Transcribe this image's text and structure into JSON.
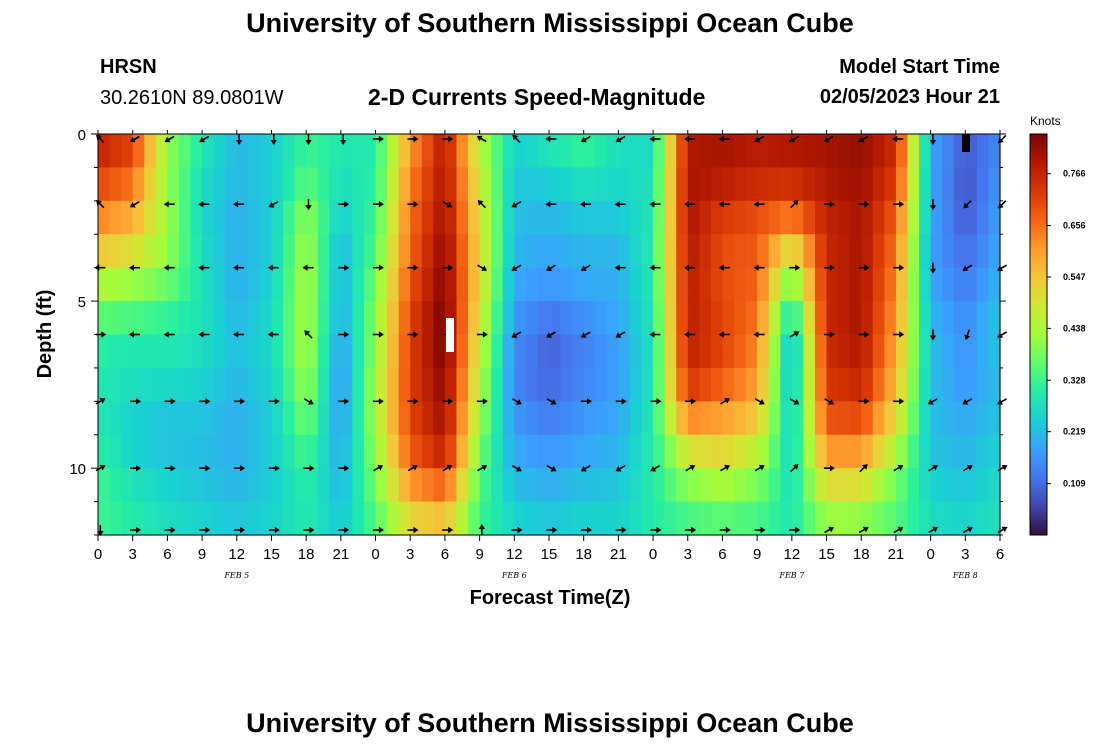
{
  "header": {
    "title": "University of Southern Mississippi Ocean Cube",
    "station": "HRSN",
    "coordinates": "30.2610N  89.0801W",
    "plot_title": "2-D Currents Speed-Magnitude",
    "model_label": "Model Start Time",
    "model_time": "02/05/2023 Hour 21"
  },
  "footer": {
    "title": "University of Southern Mississippi Ocean Cube"
  },
  "chart_data": {
    "type": "heatmap",
    "title": "2-D Currents Speed-Magnitude",
    "xlabel": "Forecast Time(Z)",
    "ylabel": "Depth (ft)",
    "x_tick_labels": [
      "0",
      "3",
      "6",
      "9",
      "12",
      "15",
      "18",
      "21",
      "0",
      "3",
      "6",
      "9",
      "12",
      "15",
      "18",
      "21",
      "0",
      "3",
      "6",
      "9",
      "12",
      "15",
      "18",
      "21",
      "0",
      "3",
      "6"
    ],
    "x_range_hours": [
      0,
      78
    ],
    "y_tick_labels": [
      "0",
      "5",
      "10"
    ],
    "y_ticks": [
      0,
      5,
      10
    ],
    "ylim": [
      0,
      12
    ],
    "day_labels": [
      {
        "label": "FEB 5",
        "hour": 12
      },
      {
        "label": "FEB 6",
        "hour": 36
      },
      {
        "label": "FEB 7",
        "hour": 60
      },
      {
        "label": "FEB 8",
        "hour": 75
      }
    ],
    "colorbar": {
      "units": "Knots",
      "tick_labels": [
        "0.766",
        "0.656",
        "0.547",
        "0.438",
        "0.328",
        "0.219",
        "0.109"
      ],
      "ticks": [
        0.766,
        0.656,
        0.547,
        0.438,
        0.328,
        0.219,
        0.109
      ],
      "range": [
        0,
        0.85
      ],
      "colors": [
        "#30123b",
        "#4145ab",
        "#4675ed",
        "#39a2fc",
        "#1bcfd4",
        "#24eca6",
        "#61fc6c",
        "#a4fc3b",
        "#d1e834",
        "#f3c63a",
        "#fe9b2d",
        "#f36315",
        "#d93806",
        "#b11901",
        "#7a0403"
      ]
    },
    "time_hours": [
      0,
      3,
      6,
      9,
      12,
      15,
      18,
      21,
      24,
      27,
      30,
      33,
      36,
      39,
      42,
      45,
      48,
      51,
      54,
      57,
      60,
      63,
      66,
      69,
      72,
      75,
      78
    ],
    "depth_ft": [
      0,
      1,
      2,
      3,
      4,
      5,
      6,
      7,
      8,
      9,
      10,
      11,
      12
    ],
    "speed_knots": [
      [
        0.78,
        0.72,
        0.42,
        0.3,
        0.2,
        0.24,
        0.34,
        0.3,
        0.3,
        0.6,
        0.78,
        0.45,
        0.25,
        0.3,
        0.34,
        0.28,
        0.25,
        0.78,
        0.8,
        0.78,
        0.8,
        0.8,
        0.82,
        0.76,
        0.2,
        0.1,
        0.15
      ],
      [
        0.75,
        0.7,
        0.4,
        0.28,
        0.22,
        0.24,
        0.32,
        0.28,
        0.3,
        0.62,
        0.8,
        0.46,
        0.24,
        0.26,
        0.3,
        0.26,
        0.28,
        0.8,
        0.8,
        0.78,
        0.78,
        0.8,
        0.82,
        0.74,
        0.18,
        0.08,
        0.15
      ],
      [
        0.66,
        0.6,
        0.42,
        0.26,
        0.2,
        0.24,
        0.4,
        0.26,
        0.32,
        0.65,
        0.8,
        0.5,
        0.22,
        0.22,
        0.25,
        0.25,
        0.28,
        0.8,
        0.75,
        0.72,
        0.7,
        0.78,
        0.8,
        0.7,
        0.2,
        0.08,
        0.18
      ],
      [
        0.6,
        0.56,
        0.42,
        0.26,
        0.2,
        0.24,
        0.42,
        0.22,
        0.34,
        0.66,
        0.82,
        0.5,
        0.22,
        0.2,
        0.22,
        0.22,
        0.3,
        0.8,
        0.7,
        0.68,
        0.58,
        0.76,
        0.8,
        0.66,
        0.18,
        0.1,
        0.18
      ],
      [
        0.48,
        0.45,
        0.4,
        0.28,
        0.2,
        0.24,
        0.44,
        0.2,
        0.36,
        0.68,
        0.84,
        0.52,
        0.2,
        0.18,
        0.2,
        0.2,
        0.3,
        0.78,
        0.7,
        0.68,
        0.4,
        0.76,
        0.8,
        0.64,
        0.18,
        0.12,
        0.2
      ],
      [
        0.4,
        0.38,
        0.34,
        0.28,
        0.2,
        0.26,
        0.44,
        0.2,
        0.4,
        0.7,
        0.85,
        0.5,
        0.18,
        0.15,
        0.18,
        0.2,
        0.3,
        0.78,
        0.7,
        0.66,
        0.32,
        0.76,
        0.8,
        0.62,
        0.2,
        0.14,
        0.22
      ],
      [
        0.32,
        0.3,
        0.3,
        0.28,
        0.22,
        0.26,
        0.44,
        0.18,
        0.4,
        0.72,
        0.86,
        0.48,
        0.16,
        0.1,
        0.14,
        0.18,
        0.28,
        0.78,
        0.72,
        0.64,
        0.2,
        0.76,
        0.8,
        0.6,
        0.22,
        0.16,
        0.24
      ],
      [
        0.3,
        0.28,
        0.28,
        0.26,
        0.22,
        0.26,
        0.44,
        0.16,
        0.42,
        0.72,
        0.84,
        0.46,
        0.14,
        0.1,
        0.14,
        0.18,
        0.28,
        0.76,
        0.7,
        0.62,
        0.2,
        0.74,
        0.78,
        0.58,
        0.22,
        0.16,
        0.22
      ],
      [
        0.28,
        0.26,
        0.24,
        0.24,
        0.2,
        0.24,
        0.4,
        0.16,
        0.44,
        0.72,
        0.82,
        0.44,
        0.15,
        0.12,
        0.15,
        0.18,
        0.3,
        0.7,
        0.64,
        0.58,
        0.22,
        0.72,
        0.74,
        0.54,
        0.22,
        0.18,
        0.22
      ],
      [
        0.3,
        0.24,
        0.22,
        0.22,
        0.2,
        0.24,
        0.36,
        0.18,
        0.42,
        0.7,
        0.8,
        0.4,
        0.18,
        0.15,
        0.18,
        0.2,
        0.3,
        0.55,
        0.56,
        0.5,
        0.24,
        0.66,
        0.66,
        0.48,
        0.22,
        0.2,
        0.24
      ],
      [
        0.32,
        0.26,
        0.24,
        0.22,
        0.2,
        0.24,
        0.32,
        0.2,
        0.4,
        0.66,
        0.74,
        0.36,
        0.2,
        0.18,
        0.2,
        0.22,
        0.3,
        0.44,
        0.48,
        0.42,
        0.26,
        0.56,
        0.56,
        0.4,
        0.24,
        0.22,
        0.26
      ],
      [
        0.34,
        0.3,
        0.26,
        0.24,
        0.22,
        0.24,
        0.3,
        0.22,
        0.36,
        0.56,
        0.6,
        0.34,
        0.24,
        0.22,
        0.24,
        0.24,
        0.3,
        0.36,
        0.38,
        0.36,
        0.28,
        0.46,
        0.44,
        0.36,
        0.26,
        0.24,
        0.28
      ],
      [
        0.32,
        0.3,
        0.28,
        0.26,
        0.24,
        0.26,
        0.3,
        0.24,
        0.34,
        0.48,
        0.52,
        0.32,
        0.26,
        0.24,
        0.26,
        0.26,
        0.3,
        0.32,
        0.34,
        0.32,
        0.3,
        0.38,
        0.38,
        0.34,
        0.28,
        0.26,
        0.28
      ]
    ],
    "arrow_directions_deg": [
      [
        315,
        240,
        240,
        240,
        180,
        180,
        180,
        180,
        90,
        90,
        90,
        300,
        315,
        270,
        240,
        240,
        270,
        270,
        270,
        240,
        240,
        240,
        240,
        270,
        180,
        180,
        225
      ],
      [
        315,
        240,
        270,
        270,
        270,
        240,
        180,
        90,
        90,
        90,
        120,
        315,
        240,
        270,
        270,
        270,
        270,
        270,
        270,
        270,
        45,
        90,
        90,
        90,
        180,
        225,
        225
      ],
      [
        270,
        270,
        270,
        270,
        270,
        270,
        270,
        90,
        90,
        90,
        90,
        120,
        240,
        240,
        240,
        270,
        270,
        270,
        270,
        270,
        90,
        90,
        90,
        90,
        180,
        240,
        240
      ],
      [
        90,
        270,
        270,
        270,
        270,
        270,
        315,
        90,
        90,
        90,
        90,
        90,
        240,
        240,
        240,
        240,
        270,
        270,
        270,
        270,
        60,
        90,
        90,
        90,
        180,
        200,
        240
      ],
      [
        60,
        90,
        90,
        90,
        90,
        90,
        120,
        90,
        90,
        90,
        90,
        90,
        120,
        120,
        90,
        90,
        90,
        90,
        60,
        120,
        120,
        120,
        90,
        90,
        240,
        240,
        240
      ],
      [
        60,
        90,
        90,
        90,
        90,
        90,
        90,
        90,
        60,
        60,
        60,
        60,
        120,
        120,
        240,
        240,
        240,
        60,
        60,
        60,
        45,
        90,
        45,
        60,
        60,
        60,
        60
      ],
      [
        180,
        90,
        90,
        90,
        90,
        90,
        90,
        90,
        90,
        90,
        90,
        0,
        90,
        90,
        90,
        90,
        90,
        90,
        90,
        90,
        90,
        60,
        60,
        60,
        60,
        60,
        60
      ]
    ]
  }
}
